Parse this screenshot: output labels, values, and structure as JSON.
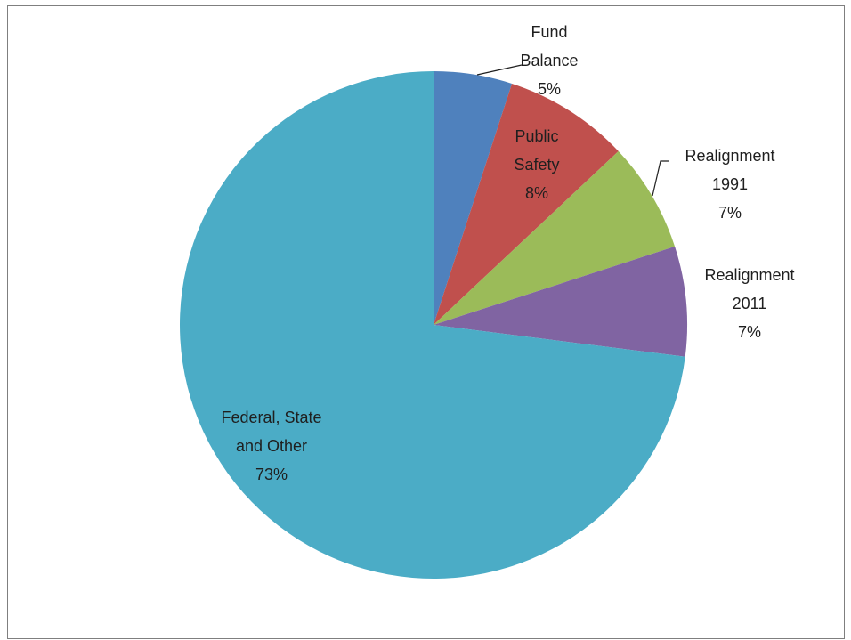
{
  "chart_data": {
    "type": "pie",
    "title": "",
    "start": "12 o'clock, clockwise",
    "slices": [
      {
        "name": "Fund Balance",
        "value": 5,
        "label_lines": [
          "Fund",
          "Balance",
          "5%"
        ],
        "color": "#4F81BD",
        "leader": true
      },
      {
        "name": "Public Safety",
        "value": 8,
        "label_lines": [
          "Public",
          "Safety",
          "8%"
        ],
        "color": "#C0504D",
        "leader": false
      },
      {
        "name": "Realignment 1991",
        "value": 7,
        "label_lines": [
          "Realignment",
          "1991",
          "7%"
        ],
        "color": "#9BBB59",
        "leader": true
      },
      {
        "name": "Realignment 2011",
        "value": 7,
        "label_lines": [
          "Realignment",
          "2011",
          "7%"
        ],
        "color": "#8064A2",
        "leader": false
      },
      {
        "name": "Federal, State and Other",
        "value": 73,
        "label_lines": [
          "Federal, State",
          "and Other",
          "73%"
        ],
        "color": "#4BACC6",
        "leader": false
      }
    ],
    "legend": "none",
    "border_color": "#7F7F7F"
  }
}
